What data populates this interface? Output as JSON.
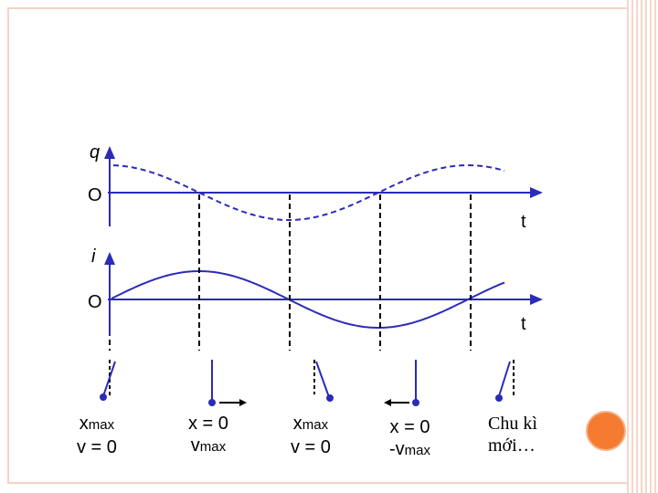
{
  "axes": {
    "q_label": "q",
    "i_label": "i",
    "origin_top": "O",
    "origin_bottom": "O",
    "t_top": "t",
    "t_bottom": "t"
  },
  "states": [
    {
      "line1": "x",
      "line1_sub": "max",
      "line2": "v = 0"
    },
    {
      "line1": "x = 0",
      "line2": "v",
      "line2_sub": "max"
    },
    {
      "line1": "x",
      "line1_sub": "max",
      "line2": "v = 0"
    },
    {
      "line1": "x = 0",
      "line2": "-v",
      "line2_sub": "max"
    },
    {
      "line1": "Chu kì",
      "line2": "mới…"
    }
  ],
  "colors": {
    "curve": "#2b2bb8",
    "accent_circle": "#f47b30",
    "frame": "#f6d2c4"
  }
}
